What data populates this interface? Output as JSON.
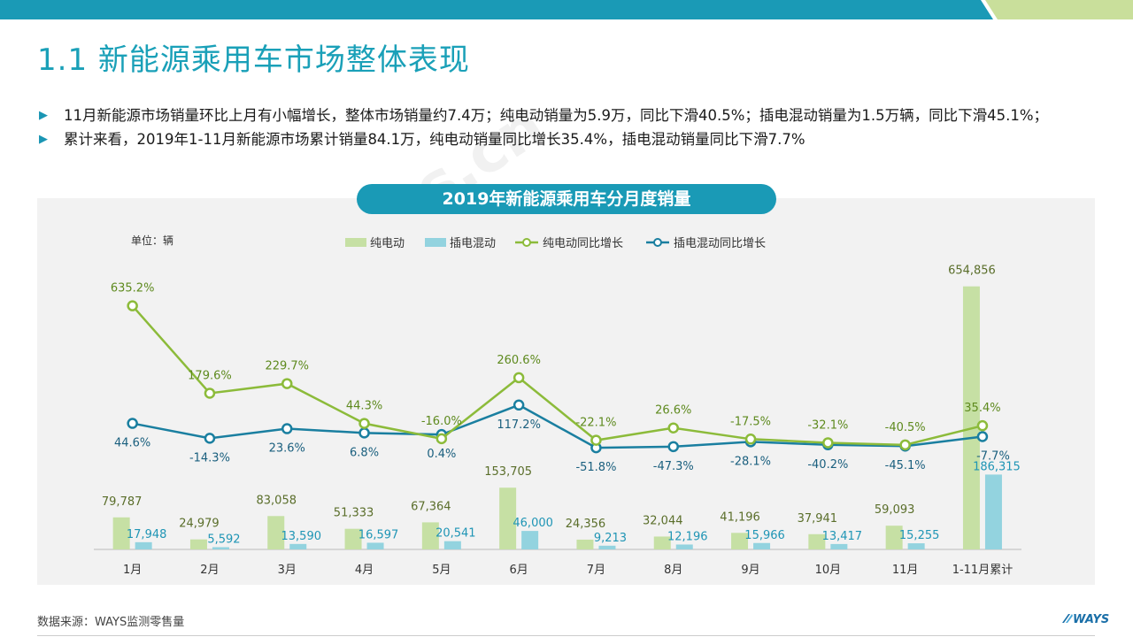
{
  "slide": {
    "title": "1.1 新能源乘用车市场整体表现",
    "bullets": [
      "11月新能源市场销量环比上月有小幅增长，整体市场销量约7.4万；纯电动销量为5.9万，同比下滑40.5%；插电混动销量为1.5万辆，同比下滑45.1%；",
      "累计来看，2019年1-11月新能源市场累计销量84.1万，纯电动销量同比增长35.4%，插电混动销量同比下滑7.7%"
    ],
    "bullet_icon": "triangle-right-icon",
    "source": "数据来源：WAYS监测零售量",
    "logo": "WAYS",
    "watermark": "www.ways-s.cn"
  },
  "colors": {
    "accent": "#1a9ab6",
    "bev_bar": "#c6e0a4",
    "phev_bar": "#93d3df",
    "bev_line": "#8cbb3a",
    "phev_line": "#1a7fa0",
    "top_band_green": "#c9df9b"
  },
  "chart_data": {
    "type": "bar",
    "title": "2019年新能源乘用车分月度销量",
    "unit_label": "单位：辆",
    "categories": [
      "1月",
      "2月",
      "3月",
      "4月",
      "5月",
      "6月",
      "7月",
      "8月",
      "9月",
      "10月",
      "11月",
      "1-11月累计"
    ],
    "series": [
      {
        "name": "纯电动",
        "type": "bar",
        "values": [
          79787,
          24979,
          83058,
          51333,
          67364,
          153705,
          24356,
          32044,
          41196,
          37941,
          59093,
          654856
        ],
        "labels": [
          "79,787",
          "24,979",
          "83,058",
          "51,333",
          "67,364",
          "153,705",
          "24,356",
          "32,044",
          "41,196",
          "37,941",
          "59,093",
          "654,856"
        ]
      },
      {
        "name": "插电混动",
        "type": "bar",
        "values": [
          17948,
          5592,
          13590,
          16597,
          20541,
          46000,
          9213,
          12196,
          15966,
          13417,
          15255,
          186315
        ],
        "labels": [
          "17,948",
          "5,592",
          "13,590",
          "16,597",
          "20,541",
          "46,000",
          "9,213",
          "12,196",
          "15,966",
          "13,417",
          "15,255",
          "186,315"
        ]
      },
      {
        "name": "纯电动同比增长",
        "type": "line",
        "values": [
          635.2,
          179.6,
          229.7,
          44.3,
          -16.0,
          260.6,
          -22.1,
          26.6,
          -17.5,
          -32.1,
          -40.5,
          35.4
        ],
        "labels": [
          "635.2%",
          "179.6%",
          "229.7%",
          "44.3%",
          "-16.0%",
          "260.6%",
          "-22.1%",
          "26.6%",
          "-17.5%",
          "-32.1%",
          "-40.5%",
          "35.4%"
        ]
      },
      {
        "name": "插电混动同比增长",
        "type": "line",
        "values": [
          44.6,
          -14.3,
          23.6,
          6.8,
          0.4,
          117.2,
          -51.8,
          -47.3,
          -28.1,
          -40.2,
          -45.1,
          -7.7
        ],
        "labels": [
          "44.6%",
          "-14.3%",
          "23.6%",
          "6.8%",
          "0.4%",
          "117.2%",
          "-51.8%",
          "-47.3%",
          "-28.1%",
          "-40.2%",
          "-45.1%",
          "-7.7%"
        ]
      }
    ],
    "legend_position": "top-center",
    "grid": false
  }
}
